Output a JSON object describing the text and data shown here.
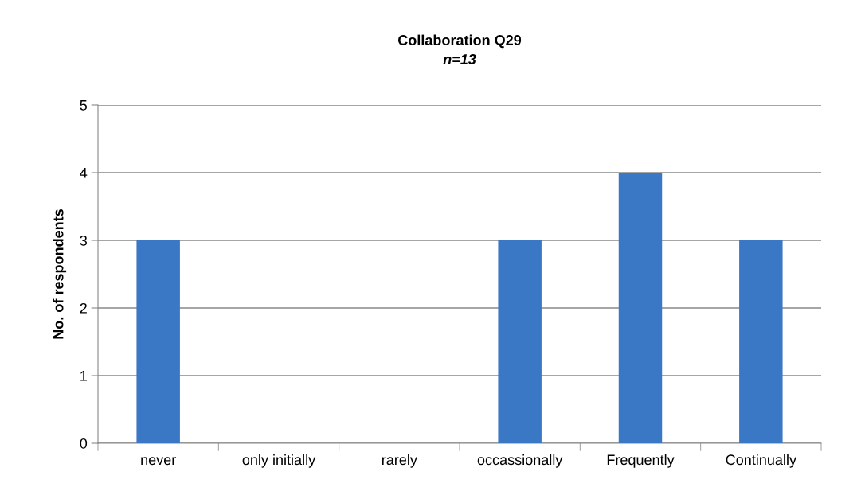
{
  "chart_data": {
    "type": "bar",
    "title": "Collaboration Q29",
    "subtitle": "n=13",
    "ylabel": "No. of respondents",
    "categories": [
      "never",
      "only initially",
      "rarely",
      "occassionally",
      "Frequently",
      "Continually"
    ],
    "values": [
      3,
      0,
      0,
      3,
      4,
      3
    ],
    "color": "#3a78c6",
    "ylim": [
      0,
      5
    ],
    "yticks": [
      0,
      1,
      2,
      3,
      4,
      5
    ],
    "grid": "y"
  }
}
